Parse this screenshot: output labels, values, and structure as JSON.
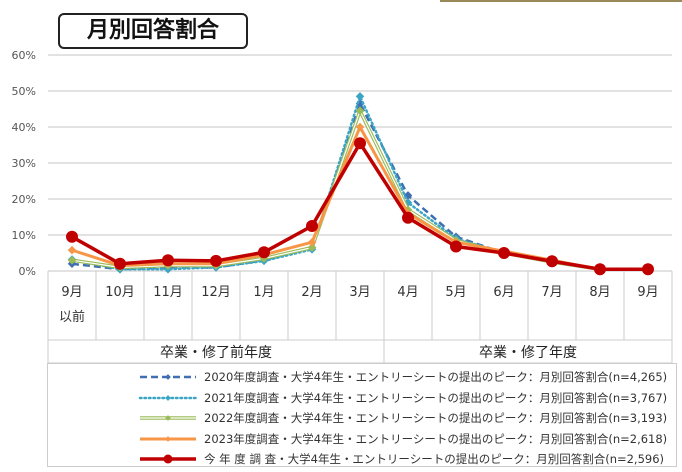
{
  "title": "月別回答割合",
  "chart_data": {
    "type": "line",
    "title": "月別回答割合",
    "categories": [
      "9月 以前",
      "10月",
      "11月",
      "12月",
      "1月",
      "2月",
      "3月",
      "4月",
      "5月",
      "6月",
      "7月",
      "8月",
      "9月"
    ],
    "category_lines": [
      [
        "9月",
        "以前"
      ],
      [
        "10月"
      ],
      [
        "11月"
      ],
      [
        "12月"
      ],
      [
        "1月"
      ],
      [
        "2月"
      ],
      [
        "3月"
      ],
      [
        "4月"
      ],
      [
        "5月"
      ],
      [
        "6月"
      ],
      [
        "7月"
      ],
      [
        "8月"
      ],
      [
        "9月"
      ]
    ],
    "groups": [
      {
        "label": "卒業・修了前年度",
        "span": 7
      },
      {
        "label": "卒業・修了年度",
        "span": 6
      }
    ],
    "ylim": [
      0,
      60
    ],
    "yticks": [
      "0%",
      "10%",
      "20%",
      "30%",
      "40%",
      "50%",
      "60%"
    ],
    "grid": true,
    "legend_position": "bottom",
    "series": [
      {
        "name": "2020年度調査・大学4年生・エントリーシートの提出のピーク：月別回答割合(n=4,265)",
        "color": "#3f6fb0",
        "style": "dashed",
        "values": [
          2,
          0.5,
          1,
          1,
          3,
          6.5,
          46.5,
          21,
          9.5,
          5,
          2.5,
          0.5,
          0.5
        ]
      },
      {
        "name": "2021年度調査・大学4年生・エントリーシートの提出のピーク：月別回答割合(n=3,767)",
        "color": "#3aa5c4",
        "style": "dotted",
        "values": [
          3.2,
          0.5,
          0.5,
          1,
          2.8,
          6,
          48.5,
          19,
          9,
          5,
          2.5,
          0.5,
          0.5
        ]
      },
      {
        "name": "2022年度調査・大学4年生・エントリーシートの提出のピーク：月別回答割合(n=3,193)",
        "color": "#9bbb59",
        "style": "double",
        "values": [
          3,
          1,
          1.5,
          1.5,
          3.5,
          6.5,
          44.5,
          17,
          8.5,
          5,
          2.5,
          0.5,
          0.5
        ]
      },
      {
        "name": "2023年度調査・大学4年生・エントリーシートの提出のピーク：月別回答割合(n=2,618)",
        "color": "#f79646",
        "style": "solid",
        "values": [
          5.8,
          1.5,
          2,
          2,
          4.5,
          8,
          40,
          16,
          8,
          5.5,
          3,
          0.5,
          0.5
        ]
      },
      {
        "name": "今 年 度 調 査・大学4年生・エントリーシートの提出のピーク：月別回答割合(n=2,596)",
        "color": "#c00000",
        "style": "solid-thick",
        "values": [
          9.5,
          2,
          3,
          2.8,
          5.2,
          12.5,
          35.5,
          14.8,
          6.8,
          5,
          2.7,
          0.5,
          0.5
        ]
      }
    ]
  }
}
